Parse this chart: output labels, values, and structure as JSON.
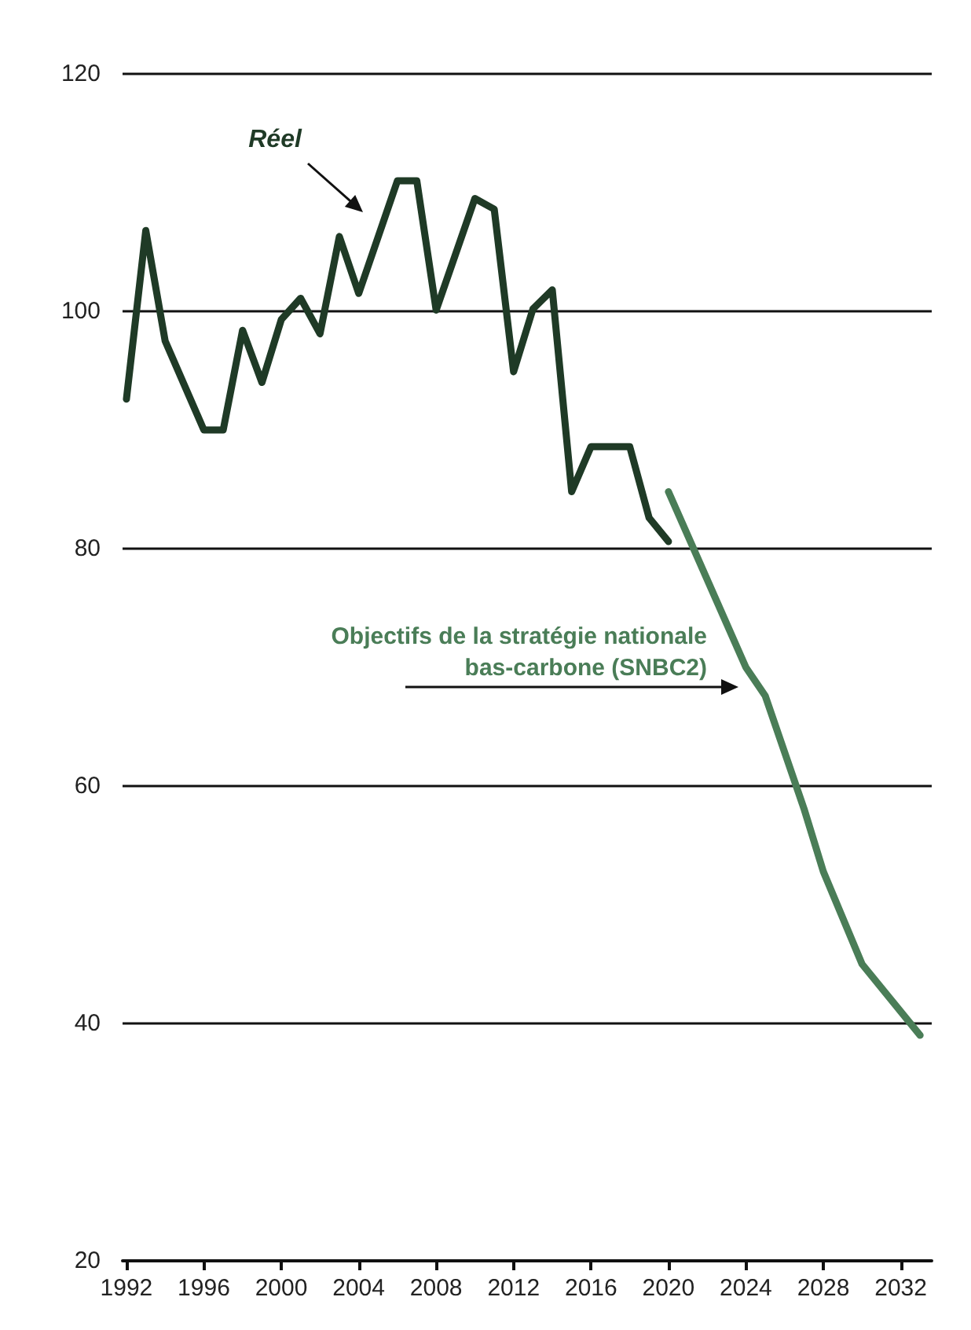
{
  "chart_data": {
    "type": "line",
    "xlim": [
      1991.8,
      2033.6
    ],
    "xticks": [
      1992,
      1996,
      2000,
      2004,
      2008,
      2012,
      2016,
      2020,
      2024,
      2028,
      2032
    ],
    "ylim": [
      20,
      120
    ],
    "yticks": [
      20,
      40,
      60,
      80,
      100,
      120
    ],
    "grid": "y",
    "marker": "none",
    "line_style": "solid",
    "series": [
      {
        "color": "#1f3a26",
        "x": [
          1992,
          1993,
          1994,
          1996,
          1997,
          1998,
          1999,
          2000,
          2001,
          2002,
          2003,
          2004,
          2006,
          2007,
          2008,
          2010,
          2011,
          2012,
          2013,
          2014,
          2015,
          2016,
          2018,
          2019,
          2020
        ],
        "values": [
          92.6,
          106.8,
          97.5,
          90.0,
          90.0,
          98.4,
          94.0,
          99.3,
          101.1,
          98.1,
          106.3,
          101.5,
          111.0,
          111.0,
          100.1,
          109.5,
          108.6,
          94.9,
          100.2,
          101.8,
          84.8,
          88.6,
          88.6,
          82.6,
          80.6
        ]
      },
      {
        "color": "#4a7d57",
        "x": [
          2020,
          2024,
          2025,
          2027,
          2028,
          2030,
          2033
        ],
        "values": [
          84.8,
          70.0,
          67.6,
          58.1,
          52.8,
          45.0,
          39.0
        ]
      }
    ],
    "annotations": [
      "Réel",
      "Objectifs de la stratégie nationale\nbas-carbone (SNBC2)"
    ]
  }
}
